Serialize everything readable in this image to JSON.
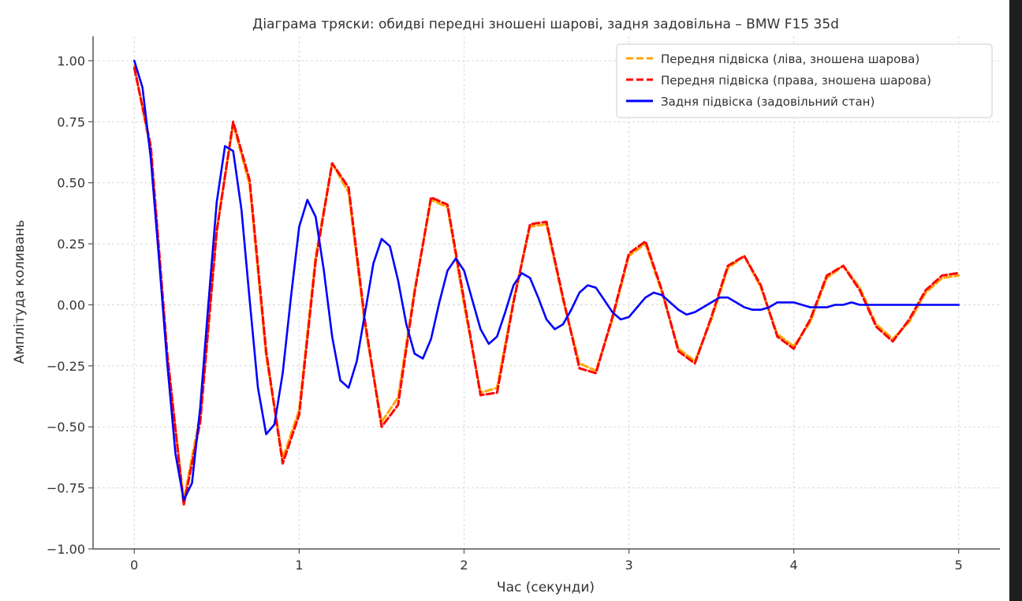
{
  "chart_data": {
    "type": "line",
    "title": "Діаграма тряски: обидві передні зношені шарові, задня задовільна – BMW F15 35d",
    "xlabel": "Час (секунди)",
    "ylabel": "Амплітуда коливань",
    "xlim": [
      -0.25,
      5.25
    ],
    "ylim": [
      -1.0,
      1.1
    ],
    "xticks": [
      0,
      1,
      2,
      3,
      4,
      5
    ],
    "xtick_labels": [
      "0",
      "1",
      "2",
      "3",
      "4",
      "5"
    ],
    "yticks": [
      -1.0,
      -0.75,
      -0.5,
      -0.25,
      0.0,
      0.25,
      0.5,
      0.75,
      1.0
    ],
    "ytick_labels": [
      "−1.00",
      "−0.75",
      "−0.50",
      "−0.25",
      "0.00",
      "0.25",
      "0.50",
      "0.75",
      "1.00"
    ],
    "grid": true,
    "legend_position": "top-right",
    "series": [
      {
        "name": "Передня підвіска (ліва, зношена шарова)",
        "color": "#FFA500",
        "style": "dashed",
        "x": [
          0,
          0.1,
          0.2,
          0.3,
          0.4,
          0.5,
          0.6,
          0.7,
          0.8,
          0.9,
          1.0,
          1.1,
          1.2,
          1.3,
          1.4,
          1.5,
          1.6,
          1.7,
          1.8,
          1.9,
          2.0,
          2.1,
          2.2,
          2.3,
          2.4,
          2.5,
          2.6,
          2.7,
          2.8,
          2.9,
          3.0,
          3.1,
          3.2,
          3.3,
          3.4,
          3.5,
          3.6,
          3.7,
          3.8,
          3.9,
          4.0,
          4.1,
          4.2,
          4.3,
          4.4,
          4.5,
          4.6,
          4.7,
          4.8,
          4.9,
          5.0
        ],
        "y": [
          0.98,
          0.63,
          -0.22,
          -0.8,
          -0.45,
          0.31,
          0.74,
          0.49,
          -0.21,
          -0.63,
          -0.43,
          0.2,
          0.58,
          0.46,
          -0.09,
          -0.48,
          -0.38,
          0.06,
          0.43,
          0.4,
          0.0,
          -0.36,
          -0.34,
          0.02,
          0.32,
          0.33,
          0.02,
          -0.24,
          -0.27,
          -0.06,
          0.2,
          0.25,
          0.05,
          -0.18,
          -0.23,
          -0.06,
          0.15,
          0.2,
          0.07,
          -0.12,
          -0.17,
          -0.07,
          0.11,
          0.16,
          0.07,
          -0.08,
          -0.14,
          -0.07,
          0.05,
          0.11,
          0.12
        ]
      },
      {
        "name": "Передня підвіска (права, зношена шарова)",
        "color": "#FF0000",
        "style": "dashed",
        "x": [
          0,
          0.1,
          0.2,
          0.3,
          0.4,
          0.5,
          0.6,
          0.7,
          0.8,
          0.9,
          1.0,
          1.1,
          1.2,
          1.3,
          1.4,
          1.5,
          1.6,
          1.7,
          1.8,
          1.9,
          2.0,
          2.1,
          2.2,
          2.3,
          2.4,
          2.5,
          2.6,
          2.7,
          2.8,
          2.9,
          3.0,
          3.1,
          3.2,
          3.3,
          3.4,
          3.5,
          3.6,
          3.7,
          3.8,
          3.9,
          4.0,
          4.1,
          4.2,
          4.3,
          4.4,
          4.5,
          4.6,
          4.7,
          4.8,
          4.9,
          5.0
        ],
        "y": [
          0.97,
          0.65,
          -0.2,
          -0.82,
          -0.48,
          0.3,
          0.75,
          0.51,
          -0.19,
          -0.65,
          -0.45,
          0.18,
          0.58,
          0.48,
          -0.07,
          -0.5,
          -0.41,
          0.05,
          0.44,
          0.41,
          0.02,
          -0.37,
          -0.36,
          0.01,
          0.33,
          0.34,
          0.03,
          -0.26,
          -0.28,
          -0.05,
          0.21,
          0.26,
          0.06,
          -0.19,
          -0.24,
          -0.05,
          0.16,
          0.2,
          0.08,
          -0.13,
          -0.18,
          -0.06,
          0.12,
          0.16,
          0.06,
          -0.09,
          -0.15,
          -0.06,
          0.06,
          0.12,
          0.13
        ]
      },
      {
        "name": "Задня підвіска (задовільний стан)",
        "color": "#0000FF",
        "style": "solid",
        "x": [
          0,
          0.05,
          0.1,
          0.15,
          0.2,
          0.25,
          0.3,
          0.35,
          0.4,
          0.45,
          0.5,
          0.55,
          0.6,
          0.65,
          0.7,
          0.75,
          0.8,
          0.85,
          0.9,
          0.95,
          1.0,
          1.05,
          1.1,
          1.15,
          1.2,
          1.25,
          1.3,
          1.35,
          1.4,
          1.45,
          1.5,
          1.55,
          1.6,
          1.65,
          1.7,
          1.75,
          1.8,
          1.85,
          1.9,
          1.95,
          2.0,
          2.05,
          2.1,
          2.15,
          2.2,
          2.25,
          2.3,
          2.35,
          2.4,
          2.45,
          2.5,
          2.55,
          2.6,
          2.65,
          2.7,
          2.75,
          2.8,
          2.85,
          2.9,
          2.95,
          3.0,
          3.05,
          3.1,
          3.15,
          3.2,
          3.25,
          3.3,
          3.35,
          3.4,
          3.45,
          3.5,
          3.55,
          3.6,
          3.65,
          3.7,
          3.75,
          3.8,
          3.85,
          3.9,
          3.95,
          4.0,
          4.05,
          4.1,
          4.15,
          4.2,
          4.25,
          4.3,
          4.35,
          4.4,
          4.45,
          4.5,
          4.55,
          4.6,
          4.65,
          4.7,
          4.75,
          4.8,
          4.85,
          4.9,
          4.95,
          5.0
        ],
        "y": [
          1.0,
          0.89,
          0.6,
          0.19,
          -0.24,
          -0.61,
          -0.8,
          -0.73,
          -0.42,
          0.01,
          0.42,
          0.65,
          0.63,
          0.39,
          0.02,
          -0.34,
          -0.53,
          -0.49,
          -0.28,
          0.03,
          0.32,
          0.43,
          0.36,
          0.14,
          -0.13,
          -0.31,
          -0.34,
          -0.23,
          -0.03,
          0.17,
          0.27,
          0.24,
          0.1,
          -0.08,
          -0.2,
          -0.22,
          -0.14,
          0.01,
          0.14,
          0.19,
          0.14,
          0.02,
          -0.1,
          -0.16,
          -0.13,
          -0.03,
          0.08,
          0.13,
          0.11,
          0.03,
          -0.06,
          -0.1,
          -0.08,
          -0.02,
          0.05,
          0.08,
          0.07,
          0.02,
          -0.03,
          -0.06,
          -0.05,
          -0.01,
          0.03,
          0.05,
          0.04,
          0.01,
          -0.02,
          -0.04,
          -0.03,
          -0.01,
          0.01,
          0.03,
          0.03,
          0.01,
          -0.01,
          -0.02,
          -0.02,
          -0.01,
          0.01,
          0.01,
          0.01,
          0.0,
          -0.01,
          -0.01,
          -0.01,
          0.0,
          0.0,
          0.01,
          0.0,
          0.0,
          0.0,
          0.0,
          0.0,
          0.0,
          0.0,
          0.0,
          0.0,
          0.0,
          0.0,
          0.0,
          0.0
        ]
      }
    ]
  }
}
